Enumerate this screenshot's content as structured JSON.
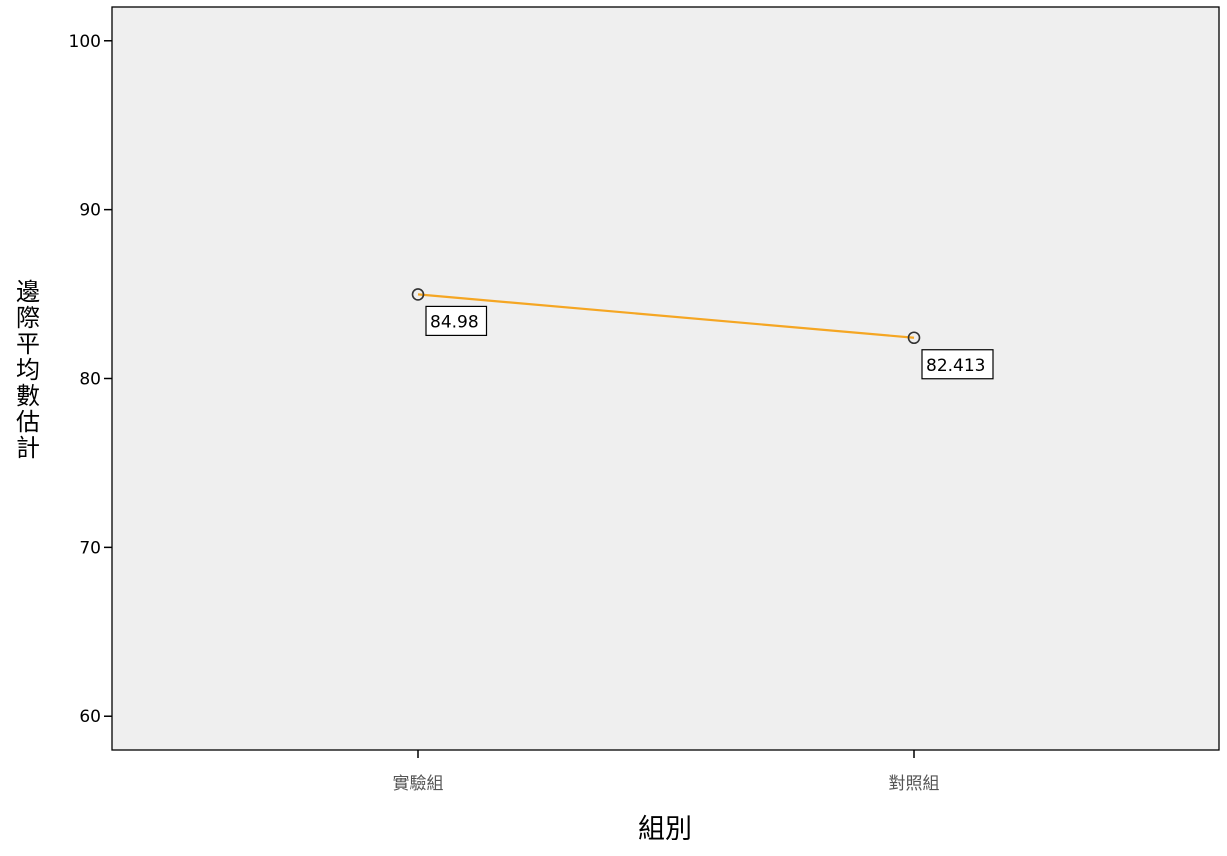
{
  "chart_data": {
    "type": "line",
    "categories": [
      "實驗組",
      "對照組"
    ],
    "series": [
      {
        "values": [
          84.98,
          82.413
        ],
        "labels": [
          "84.98",
          "82.413"
        ],
        "color": "#f5a623"
      }
    ],
    "xlabel": "組別",
    "ylabel": "邊際平均數估計",
    "ylim": [
      58,
      102
    ],
    "yticks": [
      60,
      70,
      80,
      90,
      100
    ],
    "ytick_labels": [
      "60",
      "70",
      "80",
      "90",
      "100"
    ],
    "grid": false,
    "plot_background": "#efefef",
    "marker": "open-circle"
  }
}
